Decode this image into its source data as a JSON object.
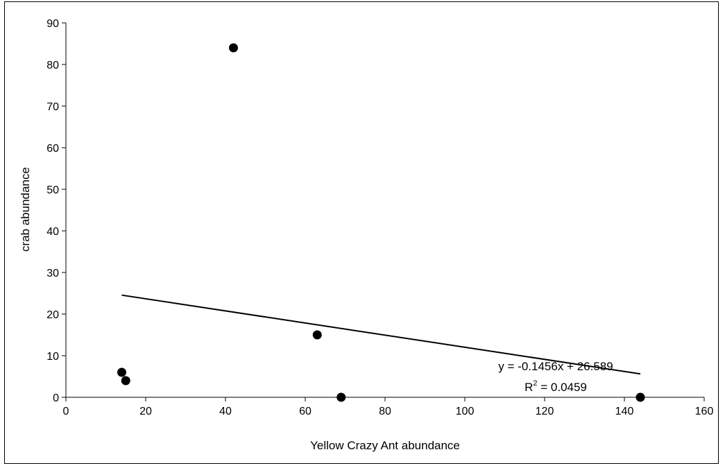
{
  "chart_data": {
    "type": "scatter",
    "title": "",
    "xlabel": "Yellow Crazy Ant abundance",
    "ylabel": "crab abundance",
    "xlim": [
      0,
      160
    ],
    "ylim": [
      0,
      90
    ],
    "x_ticks": [
      0,
      20,
      40,
      60,
      80,
      100,
      120,
      140,
      160
    ],
    "y_ticks": [
      0,
      10,
      20,
      30,
      40,
      50,
      60,
      70,
      80,
      90
    ],
    "grid": false,
    "legend": "none",
    "points": [
      {
        "x": 14,
        "y": 6
      },
      {
        "x": 15,
        "y": 4
      },
      {
        "x": 42,
        "y": 84
      },
      {
        "x": 63,
        "y": 15
      },
      {
        "x": 69,
        "y": 0
      },
      {
        "x": 144,
        "y": 0
      }
    ],
    "trendline": {
      "type": "linear",
      "slope": -0.1456,
      "intercept": 26.589,
      "x_range": [
        14,
        144
      ],
      "equation": "y = -0.1456x + 26.589",
      "r2_prefix": "R",
      "r2_sup": "2",
      "r2_value": " = 0.0459"
    },
    "colors": {
      "marker": "#000000",
      "line": "#000000"
    }
  }
}
